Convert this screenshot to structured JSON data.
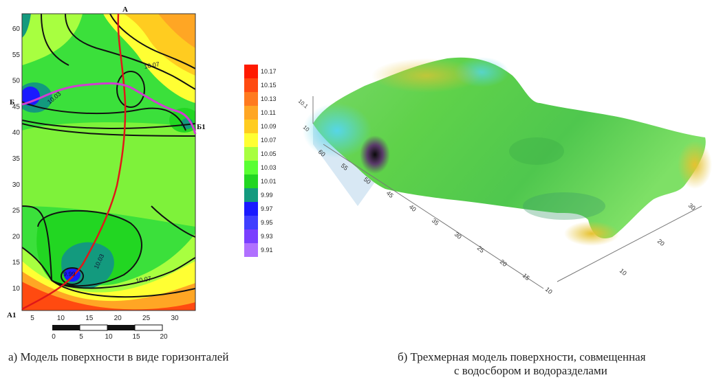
{
  "contour_map": {
    "y_ticks": [
      "60",
      "55",
      "50",
      "45",
      "40",
      "35",
      "30",
      "25",
      "20",
      "15",
      "10"
    ],
    "x_ticks": [
      "5",
      "10",
      "15",
      "20",
      "25",
      "30"
    ],
    "contour_labels": [
      "10.07",
      "10.03",
      "10.03",
      "10.07",
      "9.99"
    ],
    "points": {
      "a": "А",
      "a1": "А1",
      "b": "Б",
      "b1": "Б1"
    },
    "scale_bar": [
      "0",
      "5",
      "10",
      "15",
      "20"
    ]
  },
  "legend": {
    "values": [
      "10.17",
      "10.15",
      "10.13",
      "10.11",
      "10.09",
      "10.07",
      "10.05",
      "10.03",
      "10.01",
      "9.99",
      "9.97",
      "9.95",
      "9.93",
      "9.91"
    ],
    "colors": [
      "#ff1a00",
      "#ff4a10",
      "#ff7a1e",
      "#ffa624",
      "#ffcc20",
      "#ffff33",
      "#a8ff40",
      "#59ff33",
      "#22d622",
      "#139a7e",
      "#1a1aff",
      "#3f3fff",
      "#7a3fff",
      "#b070ff"
    ]
  },
  "surface_3d": {
    "z_ticks": [
      "10.1",
      "10"
    ],
    "y_ticks": [
      "60",
      "55",
      "50",
      "45",
      "40",
      "35",
      "30",
      "25",
      "20",
      "15",
      "10"
    ],
    "x_ticks": [
      "30",
      "20",
      "10"
    ]
  },
  "captions": {
    "left": "а) Модель поверхности в виде горизонталей",
    "right_line1": "б) Трехмерная модель поверхности, совмещенная",
    "right_line2": "с водосбором и водоразделами"
  },
  "colors": {
    "route_red": "#e01818",
    "route_magenta": "#d23cd2",
    "contour_black": "#111111"
  }
}
